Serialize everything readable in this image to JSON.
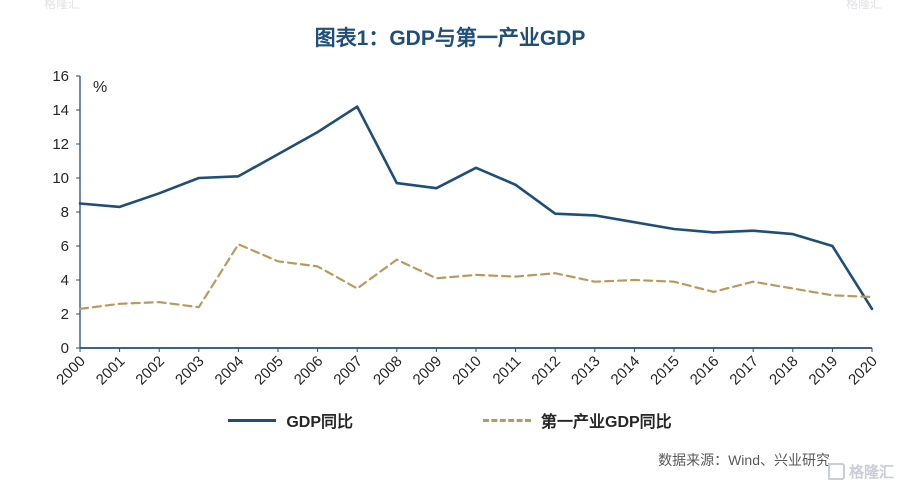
{
  "title": "图表1：GDP与第一产业GDP",
  "unit_label": "%",
  "source": "数据来源：Wind、兴业研究",
  "watermark": "格隆汇",
  "colors": {
    "title": "#1F4E79",
    "axis": "#1F4E79",
    "tick_text": "#262626",
    "gdp_line": "#1F4E79",
    "primary_industry_line": "#BE985B",
    "source_text": "#595959",
    "watermark": "#c9ced6"
  },
  "legend": {
    "items": [
      {
        "label": "GDP同比"
      },
      {
        "label": "第一产业GDP同比"
      }
    ]
  },
  "chart_data": {
    "type": "line",
    "title": "图表1：GDP与第一产业GDP",
    "xlabel": "",
    "ylabel": "%",
    "ylim": [
      0,
      16
    ],
    "ytick_step": 2,
    "grid": false,
    "legend_position": "bottom",
    "x": [
      2000,
      2001,
      2002,
      2003,
      2004,
      2005,
      2006,
      2007,
      2008,
      2009,
      2010,
      2011,
      2012,
      2013,
      2014,
      2015,
      2016,
      2017,
      2018,
      2019,
      2020
    ],
    "series": [
      {
        "name": "GDP同比",
        "style": "solid",
        "color": "#1F4E79",
        "values": [
          8.5,
          8.3,
          9.1,
          10.0,
          10.1,
          11.4,
          12.7,
          14.2,
          9.7,
          9.4,
          10.6,
          9.6,
          7.9,
          7.8,
          7.4,
          7.0,
          6.8,
          6.9,
          6.7,
          6.0,
          2.3
        ]
      },
      {
        "name": "第一产业GDP同比",
        "style": "dashed",
        "color": "#BE985B",
        "values": [
          2.3,
          2.6,
          2.7,
          2.4,
          6.1,
          5.1,
          4.8,
          3.5,
          5.2,
          4.1,
          4.3,
          4.2,
          4.4,
          3.9,
          4.0,
          3.9,
          3.3,
          3.9,
          3.5,
          3.1,
          3.0
        ]
      }
    ]
  }
}
